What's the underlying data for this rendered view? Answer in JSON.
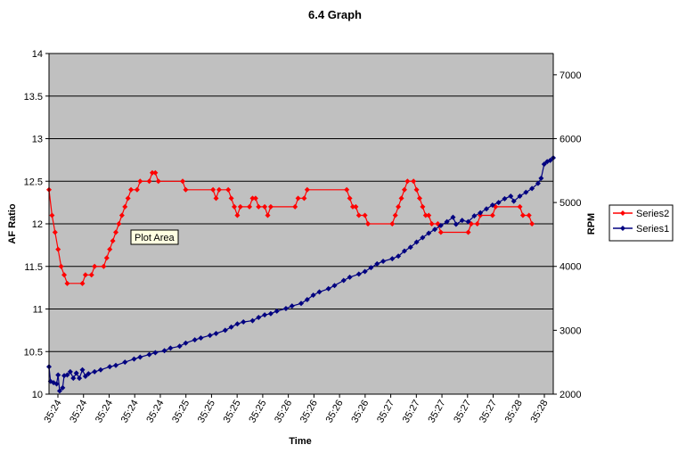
{
  "chart_data": {
    "type": "line",
    "title": "6.4 Graph",
    "xlabel": "Time",
    "ylabel_left": "AF Ratio",
    "ylabel_right": "RPM",
    "x_tick_labels": [
      "35:24",
      "35:24",
      "35:24",
      "35:24",
      "35:24",
      "35:25",
      "35:25",
      "35:25",
      "35:25",
      "35:26",
      "35:26",
      "35:26",
      "35:26",
      "35:27",
      "35:27",
      "35:27",
      "35:27",
      "35:27",
      "35:28",
      "35:28"
    ],
    "y_left": {
      "min": 10,
      "max": 14,
      "ticks": [
        "10",
        "10.5",
        "11",
        "11.5",
        "12",
        "12.5",
        "13",
        "13.5",
        "14"
      ]
    },
    "y_right": {
      "min": 2000,
      "max": 7333,
      "ticks": [
        "2000",
        "3000",
        "4000",
        "5000",
        "6000",
        "7000"
      ]
    },
    "grid": "horizontal",
    "legend_position": "right",
    "plot_background": "#c0c0c0",
    "series": [
      {
        "name": "Series2",
        "axis": "left",
        "color": "#ff0000",
        "marker_color": "#ff0000",
        "keyframes": [
          [
            0,
            12.4
          ],
          [
            2,
            12.1
          ],
          [
            4,
            11.9
          ],
          [
            6,
            11.7
          ],
          [
            8,
            11.5
          ],
          [
            10,
            11.4
          ],
          [
            12,
            11.3
          ],
          [
            22,
            11.3
          ],
          [
            24,
            11.4
          ],
          [
            28,
            11.4
          ],
          [
            30,
            11.5
          ],
          [
            36,
            11.5
          ],
          [
            38,
            11.6
          ],
          [
            40,
            11.7
          ],
          [
            42,
            11.8
          ],
          [
            44,
            11.9
          ],
          [
            46,
            12.0
          ],
          [
            48,
            12.1
          ],
          [
            50,
            12.2
          ],
          [
            52,
            12.3
          ],
          [
            54,
            12.4
          ],
          [
            58,
            12.4
          ],
          [
            60,
            12.5
          ],
          [
            66,
            12.5
          ],
          [
            68,
            12.6
          ],
          [
            70,
            12.6
          ],
          [
            72,
            12.5
          ],
          [
            88,
            12.5
          ],
          [
            90,
            12.4
          ],
          [
            108,
            12.4
          ],
          [
            110,
            12.3
          ],
          [
            112,
            12.4
          ],
          [
            118,
            12.4
          ],
          [
            120,
            12.3
          ],
          [
            122,
            12.2
          ],
          [
            124,
            12.1
          ],
          [
            126,
            12.2
          ],
          [
            132,
            12.2
          ],
          [
            134,
            12.3
          ],
          [
            136,
            12.3
          ],
          [
            138,
            12.2
          ],
          [
            142,
            12.2
          ],
          [
            144,
            12.1
          ],
          [
            146,
            12.2
          ],
          [
            162,
            12.2
          ],
          [
            164,
            12.3
          ],
          [
            168,
            12.3
          ],
          [
            170,
            12.4
          ],
          [
            196,
            12.4
          ],
          [
            198,
            12.3
          ],
          [
            200,
            12.2
          ],
          [
            202,
            12.2
          ],
          [
            204,
            12.1
          ],
          [
            208,
            12.1
          ],
          [
            210,
            12.0
          ],
          [
            226,
            12.0
          ],
          [
            228,
            12.1
          ],
          [
            230,
            12.2
          ],
          [
            232,
            12.3
          ],
          [
            234,
            12.4
          ],
          [
            236,
            12.5
          ],
          [
            240,
            12.5
          ],
          [
            242,
            12.4
          ],
          [
            244,
            12.3
          ],
          [
            246,
            12.2
          ],
          [
            248,
            12.1
          ],
          [
            250,
            12.1
          ],
          [
            252,
            12.0
          ],
          [
            256,
            12.0
          ],
          [
            258,
            11.9
          ],
          [
            276,
            11.9
          ],
          [
            278,
            12.0
          ],
          [
            282,
            12.0
          ],
          [
            284,
            12.1
          ],
          [
            292,
            12.1
          ],
          [
            294,
            12.2
          ],
          [
            310,
            12.2
          ],
          [
            312,
            12.1
          ],
          [
            316,
            12.1
          ],
          [
            318,
            12.0
          ]
        ]
      },
      {
        "name": "Series1",
        "axis": "right",
        "color": "#000080",
        "marker_color": "#000080",
        "keyframes": [
          [
            0,
            2430
          ],
          [
            1,
            2200
          ],
          [
            3,
            2180
          ],
          [
            5,
            2160
          ],
          [
            6,
            2300
          ],
          [
            7,
            2050
          ],
          [
            9,
            2100
          ],
          [
            10,
            2290
          ],
          [
            12,
            2300
          ],
          [
            14,
            2350
          ],
          [
            16,
            2250
          ],
          [
            18,
            2330
          ],
          [
            20,
            2250
          ],
          [
            22,
            2380
          ],
          [
            24,
            2280
          ],
          [
            26,
            2320
          ],
          [
            30,
            2350
          ],
          [
            34,
            2380
          ],
          [
            40,
            2430
          ],
          [
            44,
            2450
          ],
          [
            50,
            2500
          ],
          [
            56,
            2550
          ],
          [
            60,
            2580
          ],
          [
            66,
            2620
          ],
          [
            70,
            2650
          ],
          [
            76,
            2680
          ],
          [
            80,
            2720
          ],
          [
            86,
            2750
          ],
          [
            90,
            2800
          ],
          [
            96,
            2850
          ],
          [
            100,
            2880
          ],
          [
            106,
            2920
          ],
          [
            110,
            2950
          ],
          [
            116,
            3000
          ],
          [
            120,
            3050
          ],
          [
            124,
            3100
          ],
          [
            128,
            3130
          ],
          [
            134,
            3150
          ],
          [
            138,
            3200
          ],
          [
            142,
            3240
          ],
          [
            146,
            3260
          ],
          [
            150,
            3300
          ],
          [
            156,
            3340
          ],
          [
            160,
            3380
          ],
          [
            166,
            3420
          ],
          [
            170,
            3480
          ],
          [
            174,
            3550
          ],
          [
            178,
            3600
          ],
          [
            184,
            3650
          ],
          [
            188,
            3700
          ],
          [
            194,
            3780
          ],
          [
            198,
            3830
          ],
          [
            204,
            3880
          ],
          [
            208,
            3920
          ],
          [
            212,
            3980
          ],
          [
            216,
            4040
          ],
          [
            220,
            4080
          ],
          [
            226,
            4120
          ],
          [
            230,
            4160
          ],
          [
            234,
            4240
          ],
          [
            238,
            4300
          ],
          [
            242,
            4380
          ],
          [
            246,
            4450
          ],
          [
            250,
            4520
          ],
          [
            254,
            4580
          ],
          [
            258,
            4640
          ],
          [
            262,
            4700
          ],
          [
            266,
            4770
          ],
          [
            268,
            4660
          ],
          [
            272,
            4720
          ],
          [
            276,
            4700
          ],
          [
            280,
            4790
          ],
          [
            284,
            4840
          ],
          [
            288,
            4900
          ],
          [
            292,
            4960
          ],
          [
            296,
            5000
          ],
          [
            300,
            5060
          ],
          [
            304,
            5100
          ],
          [
            306,
            5020
          ],
          [
            310,
            5100
          ],
          [
            314,
            5160
          ],
          [
            318,
            5220
          ],
          [
            322,
            5300
          ],
          [
            324,
            5380
          ],
          [
            326,
            5600
          ],
          [
            328,
            5640
          ],
          [
            330,
            5660
          ],
          [
            332,
            5700
          ]
        ]
      }
    ]
  },
  "tooltip": {
    "text": "Plot Area"
  }
}
